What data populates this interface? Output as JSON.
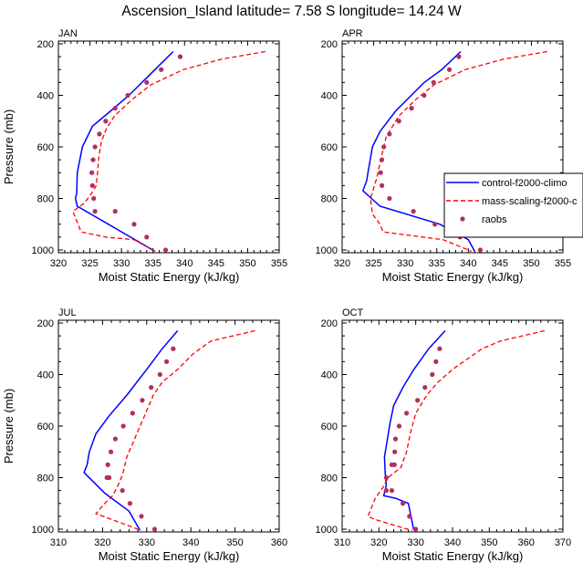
{
  "title": "Ascension_Island  latitude= 7.58 S longitude= 14.24 W",
  "legend": {
    "entries": [
      {
        "label": "control-f2000-climo",
        "color": "#0000ff",
        "style": "solid"
      },
      {
        "label": "mass-scaling-f2000-c",
        "color": "#ff0000",
        "style": "dashed"
      },
      {
        "label": "raobs",
        "color": "#b03060",
        "style": "dot"
      }
    ]
  },
  "chart_data": [
    {
      "type": "line",
      "panel": "JAN",
      "xlabel": "Moist Static Energy (kJ/kg)",
      "ylabel": "Pressure (mb)",
      "xlim": [
        320,
        355
      ],
      "ylim": [
        1000,
        200
      ],
      "xticks": [
        320,
        325,
        330,
        335,
        340,
        345,
        350,
        355
      ],
      "yticks": [
        200,
        400,
        600,
        800,
        1000
      ],
      "series": [
        {
          "name": "control-f2000-climo",
          "x": [
            338.2,
            335.3,
            331.2,
            328.3,
            325.4,
            323.8,
            323.0,
            322.9,
            322.7,
            323.0,
            335.3
          ],
          "y": [
            230,
            300,
            400,
            460,
            520,
            600,
            700,
            780,
            800,
            830,
            1005
          ]
        },
        {
          "name": "mass-scaling-f2000-c",
          "x": [
            352.8,
            345.8,
            339.8,
            334.6,
            331.5,
            328.9,
            327.6,
            326.8,
            326.4,
            326.2,
            326.0,
            325.0,
            324.0,
            322.3,
            323.6,
            327.5,
            332.0,
            335.3
          ],
          "y": [
            230,
            260,
            300,
            360,
            420,
            480,
            530,
            580,
            640,
            700,
            750,
            790,
            820,
            850,
            930,
            950,
            960,
            1005
          ]
        },
        {
          "name": "raobs",
          "x": [
            339.3,
            336.3,
            334.0,
            331.0,
            329.0,
            327.5,
            326.5,
            325.8,
            325.5,
            325.3,
            325.4,
            325.6,
            325.8,
            329.0,
            332.0,
            334.0,
            337.0
          ],
          "y": [
            250,
            300,
            350,
            400,
            450,
            500,
            550,
            600,
            650,
            700,
            750,
            800,
            850,
            850,
            900,
            950,
            1000
          ]
        }
      ]
    },
    {
      "type": "line",
      "panel": "APR",
      "xlabel": "Moist Static Energy (kJ/kg)",
      "ylabel": "",
      "xlim": [
        320,
        355
      ],
      "ylim": [
        1000,
        200
      ],
      "xticks": [
        320,
        325,
        330,
        335,
        340,
        345,
        350,
        355
      ],
      "yticks": [
        200,
        400,
        600,
        800,
        1000
      ],
      "series": [
        {
          "name": "control-f2000-climo",
          "x": [
            338.8,
            335.8,
            333.0,
            328.5,
            326.0,
            324.8,
            324.1,
            323.9,
            323.3,
            326.0,
            335.5,
            340.0,
            341.0
          ],
          "y": [
            230,
            300,
            350,
            460,
            540,
            600,
            700,
            730,
            770,
            830,
            900,
            960,
            1005
          ]
        },
        {
          "name": "mass-scaling-f2000-c",
          "x": [
            352.5,
            345.5,
            339.5,
            334.5,
            331.5,
            329.0,
            327.0,
            326.2,
            325.5,
            324.5,
            324.8,
            326.0,
            326.5,
            336.0,
            340.5
          ],
          "y": [
            230,
            260,
            300,
            360,
            420,
            480,
            560,
            640,
            720,
            800,
            860,
            900,
            930,
            960,
            1005
          ]
        },
        {
          "name": "raobs",
          "x": [
            338.5,
            337.0,
            334.5,
            333.0,
            331.0,
            329.0,
            327.5,
            326.6,
            326.3,
            326.1,
            326.3,
            327.5,
            331.3,
            334.7,
            338.7,
            341.9
          ],
          "y": [
            250,
            300,
            350,
            400,
            450,
            500,
            550,
            600,
            650,
            700,
            750,
            800,
            850,
            900,
            950,
            1000
          ]
        }
      ]
    },
    {
      "type": "line",
      "panel": "JUL",
      "xlabel": "Moist Static Energy (kJ/kg)",
      "ylabel": "Pressure (mb)",
      "xlim": [
        310,
        360
      ],
      "ylim": [
        1000,
        200
      ],
      "xticks": [
        310,
        320,
        330,
        340,
        350,
        360
      ],
      "yticks": [
        200,
        400,
        600,
        800,
        1000
      ],
      "series": [
        {
          "name": "control-f2000-climo",
          "x": [
            337.0,
            333.5,
            330.0,
            325.5,
            321.5,
            318.5,
            317.0,
            316.5,
            315.8,
            320.5,
            326.0,
            328.5
          ],
          "y": [
            230,
            300,
            380,
            480,
            560,
            630,
            700,
            750,
            780,
            860,
            930,
            1005
          ]
        },
        {
          "name": "mass-scaling-f2000-c",
          "x": [
            354.5,
            344.5,
            340.5,
            337.0,
            333.5,
            331.5,
            329.5,
            327.5,
            325.5,
            324.5,
            323.5,
            322.3,
            320.5,
            318.5,
            328.0
          ],
          "y": [
            230,
            270,
            320,
            380,
            430,
            480,
            560,
            640,
            720,
            790,
            830,
            870,
            900,
            940,
            1000
          ]
        },
        {
          "name": "raobs",
          "x": [
            336.0,
            334.5,
            333.0,
            331.0,
            329.0,
            326.8,
            324.7,
            322.9,
            321.9,
            321.2,
            321.0,
            321.5,
            324.5,
            326.2,
            328.8,
            331.8
          ],
          "y": [
            300,
            350,
            400,
            450,
            500,
            550,
            600,
            650,
            700,
            750,
            800,
            800,
            850,
            900,
            950,
            1000
          ]
        }
      ]
    },
    {
      "type": "line",
      "panel": "OCT",
      "xlabel": "Moist Static Energy (kJ/kg)",
      "ylabel": "",
      "xlim": [
        310,
        370
      ],
      "ylim": [
        1000,
        200
      ],
      "xticks": [
        310,
        320,
        330,
        340,
        350,
        360,
        370
      ],
      "yticks": [
        200,
        400,
        600,
        800,
        1000
      ],
      "series": [
        {
          "name": "control-f2000-climo",
          "x": [
            338.0,
            333.5,
            329.5,
            326.5,
            324.0,
            323.0,
            322.2,
            321.5,
            321.7,
            322.0,
            321.3,
            324.5,
            328.0,
            329.5
          ],
          "y": [
            230,
            300,
            380,
            450,
            520,
            590,
            660,
            720,
            780,
            830,
            870,
            880,
            900,
            1005
          ]
        },
        {
          "name": "mass-scaling-f2000-c",
          "x": [
            365.0,
            353.0,
            348.0,
            344.0,
            340.0,
            336.0,
            333.0,
            330.0,
            328.5,
            327.5,
            326.0,
            322.5,
            321.0,
            319.0,
            317.0,
            318.5,
            323.0,
            329.0
          ],
          "y": [
            230,
            270,
            300,
            340,
            380,
            430,
            480,
            550,
            630,
            700,
            760,
            800,
            840,
            880,
            950,
            960,
            980,
            1005
          ]
        },
        {
          "name": "raobs",
          "x": [
            336.5,
            335.5,
            334.5,
            332.5,
            330.5,
            327.5,
            325.5,
            324.5,
            324.3,
            324.2,
            323.5,
            322.0,
            322.0,
            323.5,
            326.5,
            328.3,
            330.0
          ],
          "y": [
            300,
            350,
            400,
            450,
            500,
            550,
            600,
            650,
            700,
            750,
            750,
            800,
            850,
            850,
            900,
            950,
            1000
          ]
        }
      ]
    }
  ]
}
